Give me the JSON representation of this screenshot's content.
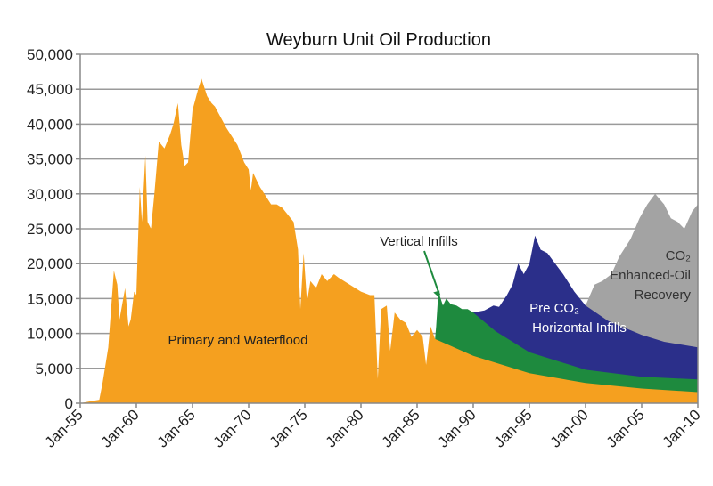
{
  "chart_data": {
    "type": "area",
    "stacked": true,
    "title": "Weyburn Unit Oil Production",
    "xlabel": "",
    "ylabel": "",
    "xlim": [
      1955,
      2010
    ],
    "ylim": [
      0,
      50000
    ],
    "grid": true,
    "x_ticks": [
      {
        "x": 1955,
        "label": "Jan-55"
      },
      {
        "x": 1960,
        "label": "Jan-60"
      },
      {
        "x": 1965,
        "label": "Jan-65"
      },
      {
        "x": 1970,
        "label": "Jan-70"
      },
      {
        "x": 1975,
        "label": "Jan-75"
      },
      {
        "x": 1980,
        "label": "Jan-80"
      },
      {
        "x": 1985,
        "label": "Jan-85"
      },
      {
        "x": 1990,
        "label": "Jan-90"
      },
      {
        "x": 1995,
        "label": "Jan-95"
      },
      {
        "x": 2000,
        "label": "Jan-00"
      },
      {
        "x": 2005,
        "label": "Jan-05"
      },
      {
        "x": 2010,
        "label": "Jan-10"
      }
    ],
    "y_ticks": [
      {
        "y": 0,
        "label": "0"
      },
      {
        "y": 5000,
        "label": "5,000"
      },
      {
        "y": 10000,
        "label": "10,000"
      },
      {
        "y": 15000,
        "label": "15,000"
      },
      {
        "y": 20000,
        "label": "20,000"
      },
      {
        "y": 25000,
        "label": "25,000"
      },
      {
        "y": 30000,
        "label": "30,000"
      },
      {
        "y": 35000,
        "label": "35,000"
      },
      {
        "y": 40000,
        "label": "40,000"
      },
      {
        "y": 45000,
        "label": "45,000"
      },
      {
        "y": 50000,
        "label": "50,000"
      }
    ],
    "series": [
      {
        "name": "Primary and Waterflood",
        "label_lines": [
          "Primary and Waterflood"
        ],
        "color": "#F5A01F",
        "text_color": "#222222",
        "stack_top": [
          [
            1955,
            0
          ],
          [
            1956,
            300
          ],
          [
            1956.7,
            500
          ],
          [
            1957,
            3000
          ],
          [
            1957.5,
            8000
          ],
          [
            1958,
            19000
          ],
          [
            1958.3,
            17000
          ],
          [
            1958.5,
            12000
          ],
          [
            1959,
            16500
          ],
          [
            1959.3,
            11000
          ],
          [
            1959.5,
            12000
          ],
          [
            1959.8,
            16000
          ],
          [
            1960,
            15500
          ],
          [
            1960.3,
            31000
          ],
          [
            1960.5,
            26000
          ],
          [
            1960.8,
            35500
          ],
          [
            1961,
            26000
          ],
          [
            1961.3,
            25000
          ],
          [
            1961.6,
            30000
          ],
          [
            1962,
            37500
          ],
          [
            1962.5,
            36500
          ],
          [
            1963,
            38500
          ],
          [
            1963.3,
            40000
          ],
          [
            1963.7,
            43000
          ],
          [
            1964,
            37000
          ],
          [
            1964.3,
            34000
          ],
          [
            1964.6,
            34500
          ],
          [
            1965,
            42000
          ],
          [
            1965.5,
            45000
          ],
          [
            1965.8,
            46500
          ],
          [
            1966.3,
            44000
          ],
          [
            1966.7,
            43000
          ],
          [
            1967,
            42500
          ],
          [
            1968,
            39500
          ],
          [
            1969,
            37000
          ],
          [
            1969.6,
            34500
          ],
          [
            1970,
            33500
          ],
          [
            1970.2,
            30500
          ],
          [
            1970.4,
            33000
          ],
          [
            1971,
            31000
          ],
          [
            1972,
            28500
          ],
          [
            1972.5,
            28500
          ],
          [
            1973,
            28000
          ],
          [
            1974,
            26000
          ],
          [
            1974.4,
            22000
          ],
          [
            1974.6,
            13500
          ],
          [
            1974.9,
            21500
          ],
          [
            1975.2,
            14500
          ],
          [
            1975.5,
            17500
          ],
          [
            1976,
            16500
          ],
          [
            1976.5,
            18500
          ],
          [
            1977,
            17500
          ],
          [
            1977.6,
            18500
          ],
          [
            1978,
            18000
          ],
          [
            1979,
            17000
          ],
          [
            1980,
            16000
          ],
          [
            1980.8,
            15500
          ],
          [
            1981.2,
            15500
          ],
          [
            1981.5,
            3500
          ],
          [
            1981.8,
            13500
          ],
          [
            1982.3,
            14000
          ],
          [
            1982.6,
            7500
          ],
          [
            1983,
            13000
          ],
          [
            1983.5,
            12000
          ],
          [
            1984,
            11500
          ],
          [
            1984.5,
            9500
          ],
          [
            1985,
            10500
          ],
          [
            1985.5,
            9500
          ],
          [
            1985.8,
            5500
          ],
          [
            1986.2,
            11000
          ],
          [
            1986.6,
            9200
          ],
          [
            1990,
            6800
          ],
          [
            1995,
            4300
          ],
          [
            2000,
            2900
          ],
          [
            2005,
            2100
          ],
          [
            2010,
            1600
          ]
        ]
      },
      {
        "name": "Vertical Infills",
        "label_lines": [
          "Vertical Infills"
        ],
        "color": "#1E8A3E",
        "text_color": "#222222",
        "stack_top": [
          [
            1986.6,
            9200
          ],
          [
            1986.7,
            11000
          ],
          [
            1986.9,
            16000
          ],
          [
            1987.3,
            14000
          ],
          [
            1987.6,
            15000
          ],
          [
            1988,
            14200
          ],
          [
            1988.5,
            14000
          ],
          [
            1989,
            13500
          ],
          [
            1989.5,
            13500
          ],
          [
            1990,
            13000
          ],
          [
            1992,
            10300
          ],
          [
            1995,
            7300
          ],
          [
            2000,
            4800
          ],
          [
            2005,
            3800
          ],
          [
            2010,
            3400
          ]
        ]
      },
      {
        "name": "Pre CO₂ Horizontal Infills",
        "label_lines": [
          "Pre CO₂",
          "Horizontal Infills"
        ],
        "color": "#2B2F8A",
        "text_color": "#FFFFFF",
        "stack_top": [
          [
            1990,
            13000
          ],
          [
            1991,
            13300
          ],
          [
            1991.8,
            14000
          ],
          [
            1992.3,
            13800
          ],
          [
            1993,
            15500
          ],
          [
            1993.5,
            17000
          ],
          [
            1994,
            20000
          ],
          [
            1994.5,
            18500
          ],
          [
            1995,
            20000
          ],
          [
            1995.5,
            24000
          ],
          [
            1996,
            22000
          ],
          [
            1996.6,
            21500
          ],
          [
            1997.3,
            20000
          ],
          [
            1998,
            18500
          ],
          [
            1999,
            16000
          ],
          [
            2000,
            14000
          ],
          [
            2002,
            11800
          ],
          [
            2005,
            9800
          ],
          [
            2007,
            8800
          ],
          [
            2010,
            8000
          ]
        ]
      },
      {
        "name": "CO₂ Enhanced-Oil Recovery",
        "label_lines": [
          "CO₂",
          "Enhanced-Oil",
          "Recovery"
        ],
        "color": "#A3A3A3",
        "text_color": "#333333",
        "stack_top": [
          [
            2000,
            14000
          ],
          [
            2000.8,
            17000
          ],
          [
            2001.5,
            17500
          ],
          [
            2002.3,
            18500
          ],
          [
            2003,
            21000
          ],
          [
            2004,
            23500
          ],
          [
            2004.8,
            26500
          ],
          [
            2005.5,
            28500
          ],
          [
            2006.2,
            30000
          ],
          [
            2007,
            28500
          ],
          [
            2007.6,
            26500
          ],
          [
            2008.2,
            26000
          ],
          [
            2008.8,
            25000
          ],
          [
            2009.5,
            27500
          ],
          [
            2010,
            28500
          ]
        ]
      }
    ],
    "annotations": [
      {
        "text": "Vertical Infills",
        "arrow_to": [
          1987,
          16000
        ]
      }
    ]
  }
}
